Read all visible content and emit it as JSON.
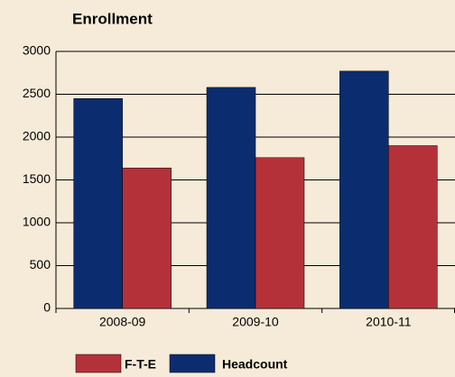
{
  "chart_data": {
    "type": "bar",
    "title": "Enrollment",
    "categories": [
      "2008-09",
      "2009-10",
      "2010-11"
    ],
    "series": [
      {
        "name": "F-T-E",
        "color": "#b5313a",
        "values": [
          1640,
          1760,
          1900
        ]
      },
      {
        "name": "Headcount",
        "color": "#0b2d6f",
        "values": [
          2450,
          2580,
          2770
        ]
      }
    ],
    "ylim": [
      0,
      3000
    ],
    "yticks": [
      0,
      500,
      1000,
      1500,
      2000,
      2500,
      3000
    ],
    "grid": true
  }
}
